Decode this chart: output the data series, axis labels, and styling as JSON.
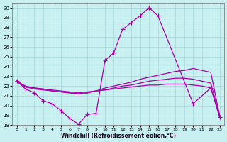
{
  "xlabel": "Windchill (Refroidissement éolien,°C)",
  "bg_color": "#c8f0f0",
  "grid_color": "#a8d8d8",
  "line_color": "#aa00aa",
  "x_all": [
    0,
    1,
    2,
    3,
    4,
    5,
    6,
    7,
    8,
    9,
    10,
    11,
    12,
    13,
    14,
    15,
    16,
    17,
    18,
    19,
    20,
    21,
    22,
    23
  ],
  "main_x": [
    0,
    1,
    2,
    3,
    4,
    5,
    6,
    7,
    8,
    9,
    10,
    11,
    12,
    13,
    14,
    15,
    16,
    20,
    22,
    23
  ],
  "main_y": [
    22.5,
    21.7,
    21.3,
    20.5,
    20.2,
    19.5,
    18.7,
    18.1,
    19.1,
    19.2,
    24.6,
    25.4,
    27.8,
    28.5,
    29.2,
    30.0,
    29.2,
    20.2,
    21.8,
    18.8
  ],
  "line1_y": [
    22.5,
    22.0,
    21.8,
    21.7,
    21.5,
    21.4,
    21.3,
    21.2,
    21.3,
    21.5,
    21.8,
    22.0,
    22.2,
    22.4,
    22.7,
    22.9,
    23.1,
    23.3,
    23.5,
    23.6,
    23.8,
    23.6,
    23.4,
    19.0
  ],
  "line2_y": [
    22.5,
    21.9,
    21.7,
    21.6,
    21.5,
    21.4,
    21.3,
    21.2,
    21.3,
    21.5,
    21.6,
    21.8,
    22.0,
    22.1,
    22.3,
    22.5,
    22.6,
    22.7,
    22.8,
    22.8,
    22.7,
    22.5,
    22.3,
    19.0
  ],
  "line3_y": [
    22.5,
    21.9,
    21.8,
    21.7,
    21.6,
    21.5,
    21.4,
    21.3,
    21.4,
    21.5,
    21.6,
    21.7,
    21.8,
    21.9,
    22.0,
    22.1,
    22.1,
    22.2,
    22.2,
    22.2,
    22.1,
    22.0,
    21.8,
    19.0
  ],
  "ylim": [
    18,
    30.5
  ],
  "yticks": [
    18,
    19,
    20,
    21,
    22,
    23,
    24,
    25,
    26,
    27,
    28,
    29,
    30
  ],
  "xticks": [
    0,
    1,
    2,
    3,
    4,
    5,
    6,
    7,
    8,
    9,
    10,
    11,
    12,
    13,
    14,
    15,
    16,
    17,
    18,
    19,
    20,
    21,
    22,
    23
  ]
}
